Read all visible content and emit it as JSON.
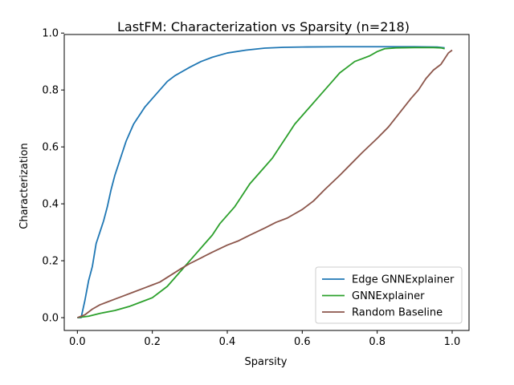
{
  "chart_data": {
    "type": "line",
    "title": "LastFM: Characterization vs Sparsity (n=218)",
    "xlabel": "Sparsity",
    "ylabel": "Characterization",
    "xlim": [
      -0.035,
      1.045
    ],
    "ylim": [
      -0.045,
      0.995
    ],
    "xticks": [
      0.0,
      0.2,
      0.4,
      0.6,
      0.8,
      1.0
    ],
    "xtick_labels": [
      "0.0",
      "0.2",
      "0.4",
      "0.6",
      "0.8",
      "1.0"
    ],
    "yticks": [
      0.0,
      0.2,
      0.4,
      0.6,
      0.8,
      1.0
    ],
    "ytick_labels": [
      "0.0",
      "0.2",
      "0.4",
      "0.6",
      "0.8",
      "1.0"
    ],
    "grid": false,
    "legend_position": "lower-right",
    "series": [
      {
        "name": "Edge GNNExplainer",
        "color": "#1f77b4",
        "x": [
          0.0,
          0.01,
          0.02,
          0.03,
          0.04,
          0.05,
          0.06,
          0.07,
          0.08,
          0.09,
          0.1,
          0.11,
          0.12,
          0.13,
          0.14,
          0.15,
          0.16,
          0.17,
          0.18,
          0.2,
          0.22,
          0.24,
          0.26,
          0.28,
          0.3,
          0.33,
          0.36,
          0.4,
          0.45,
          0.5,
          0.55,
          0.6,
          0.7,
          0.8,
          0.9,
          0.96,
          0.98
        ],
        "y": [
          0.0,
          0.0,
          0.06,
          0.13,
          0.18,
          0.26,
          0.3,
          0.34,
          0.39,
          0.45,
          0.5,
          0.54,
          0.58,
          0.62,
          0.65,
          0.68,
          0.7,
          0.72,
          0.74,
          0.77,
          0.8,
          0.83,
          0.85,
          0.865,
          0.88,
          0.9,
          0.915,
          0.93,
          0.94,
          0.947,
          0.95,
          0.951,
          0.952,
          0.952,
          0.952,
          0.951,
          0.948
        ]
      },
      {
        "name": "GNNExplainer",
        "color": "#2ca02c",
        "x": [
          0.0,
          0.03,
          0.06,
          0.1,
          0.14,
          0.18,
          0.2,
          0.22,
          0.24,
          0.26,
          0.28,
          0.3,
          0.32,
          0.34,
          0.36,
          0.38,
          0.4,
          0.42,
          0.44,
          0.46,
          0.48,
          0.5,
          0.52,
          0.54,
          0.56,
          0.58,
          0.6,
          0.62,
          0.64,
          0.66,
          0.68,
          0.7,
          0.72,
          0.74,
          0.76,
          0.78,
          0.8,
          0.82,
          0.85,
          0.9,
          0.95,
          0.97,
          0.98
        ],
        "y": [
          0.0,
          0.005,
          0.015,
          0.025,
          0.04,
          0.06,
          0.07,
          0.09,
          0.11,
          0.14,
          0.17,
          0.2,
          0.23,
          0.26,
          0.29,
          0.33,
          0.36,
          0.39,
          0.43,
          0.47,
          0.5,
          0.53,
          0.56,
          0.6,
          0.64,
          0.68,
          0.71,
          0.74,
          0.77,
          0.8,
          0.83,
          0.86,
          0.88,
          0.9,
          0.91,
          0.92,
          0.935,
          0.945,
          0.948,
          0.949,
          0.949,
          0.948,
          0.945
        ]
      },
      {
        "name": "Random Baseline",
        "color": "#8c564b",
        "x": [
          0.0,
          0.02,
          0.04,
          0.06,
          0.08,
          0.1,
          0.12,
          0.15,
          0.18,
          0.2,
          0.22,
          0.25,
          0.28,
          0.3,
          0.33,
          0.36,
          0.4,
          0.43,
          0.46,
          0.5,
          0.53,
          0.56,
          0.58,
          0.6,
          0.63,
          0.66,
          0.7,
          0.73,
          0.76,
          0.8,
          0.83,
          0.86,
          0.89,
          0.91,
          0.93,
          0.95,
          0.97,
          0.98,
          0.99,
          1.0
        ],
        "y": [
          0.0,
          0.01,
          0.03,
          0.045,
          0.055,
          0.065,
          0.075,
          0.09,
          0.105,
          0.115,
          0.125,
          0.15,
          0.175,
          0.19,
          0.21,
          0.23,
          0.255,
          0.27,
          0.29,
          0.315,
          0.335,
          0.35,
          0.365,
          0.38,
          0.41,
          0.45,
          0.5,
          0.54,
          0.58,
          0.63,
          0.67,
          0.72,
          0.77,
          0.8,
          0.84,
          0.87,
          0.89,
          0.91,
          0.93,
          0.94
        ]
      }
    ]
  }
}
